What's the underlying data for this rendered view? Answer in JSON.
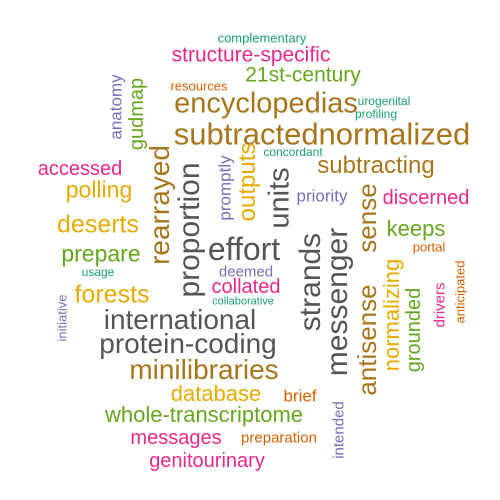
{
  "colors": {
    "teal": "#1b9e77",
    "orange": "#d95f02",
    "purple": "#7570b3",
    "magenta": "#e7298a",
    "green": "#66a61e",
    "gold": "#e6ab02",
    "brown": "#a6761d",
    "gray": "#666666"
  },
  "words": [
    {
      "text": "complementary"
    },
    {
      "text": "structure-specific"
    },
    {
      "text": "resources"
    },
    {
      "text": "21st-century"
    },
    {
      "text": "anatomy"
    },
    {
      "text": "gudmap"
    },
    {
      "text": "encyclopedias"
    },
    {
      "text": "urogenital"
    },
    {
      "text": "profiling"
    },
    {
      "text": "subtractednormalized"
    },
    {
      "text": "concordant"
    },
    {
      "text": "accessed"
    },
    {
      "text": "rearrayed"
    },
    {
      "text": "proportion"
    },
    {
      "text": "promptly"
    },
    {
      "text": "outputs"
    },
    {
      "text": "units"
    },
    {
      "text": "subtracting"
    },
    {
      "text": "polling"
    },
    {
      "text": "priority"
    },
    {
      "text": "discerned"
    },
    {
      "text": "deserts"
    },
    {
      "text": "keeps"
    },
    {
      "text": "sense"
    },
    {
      "text": "antisense"
    },
    {
      "text": "effort"
    },
    {
      "text": "prepare"
    },
    {
      "text": "strands"
    },
    {
      "text": "messenger"
    },
    {
      "text": "portal"
    },
    {
      "text": "usage"
    },
    {
      "text": "deemed"
    },
    {
      "text": "normalizing"
    },
    {
      "text": "forests"
    },
    {
      "text": "collated"
    },
    {
      "text": "collaborative"
    },
    {
      "text": "drivers"
    },
    {
      "text": "anticipated"
    },
    {
      "text": "initiative"
    },
    {
      "text": "grounded"
    },
    {
      "text": "international"
    },
    {
      "text": "protein-coding"
    },
    {
      "text": "minilibraries"
    },
    {
      "text": "database"
    },
    {
      "text": "brief"
    },
    {
      "text": "intended"
    },
    {
      "text": "whole-transcriptome"
    },
    {
      "text": "messages"
    },
    {
      "text": "preparation"
    },
    {
      "text": "genitourinary"
    }
  ]
}
